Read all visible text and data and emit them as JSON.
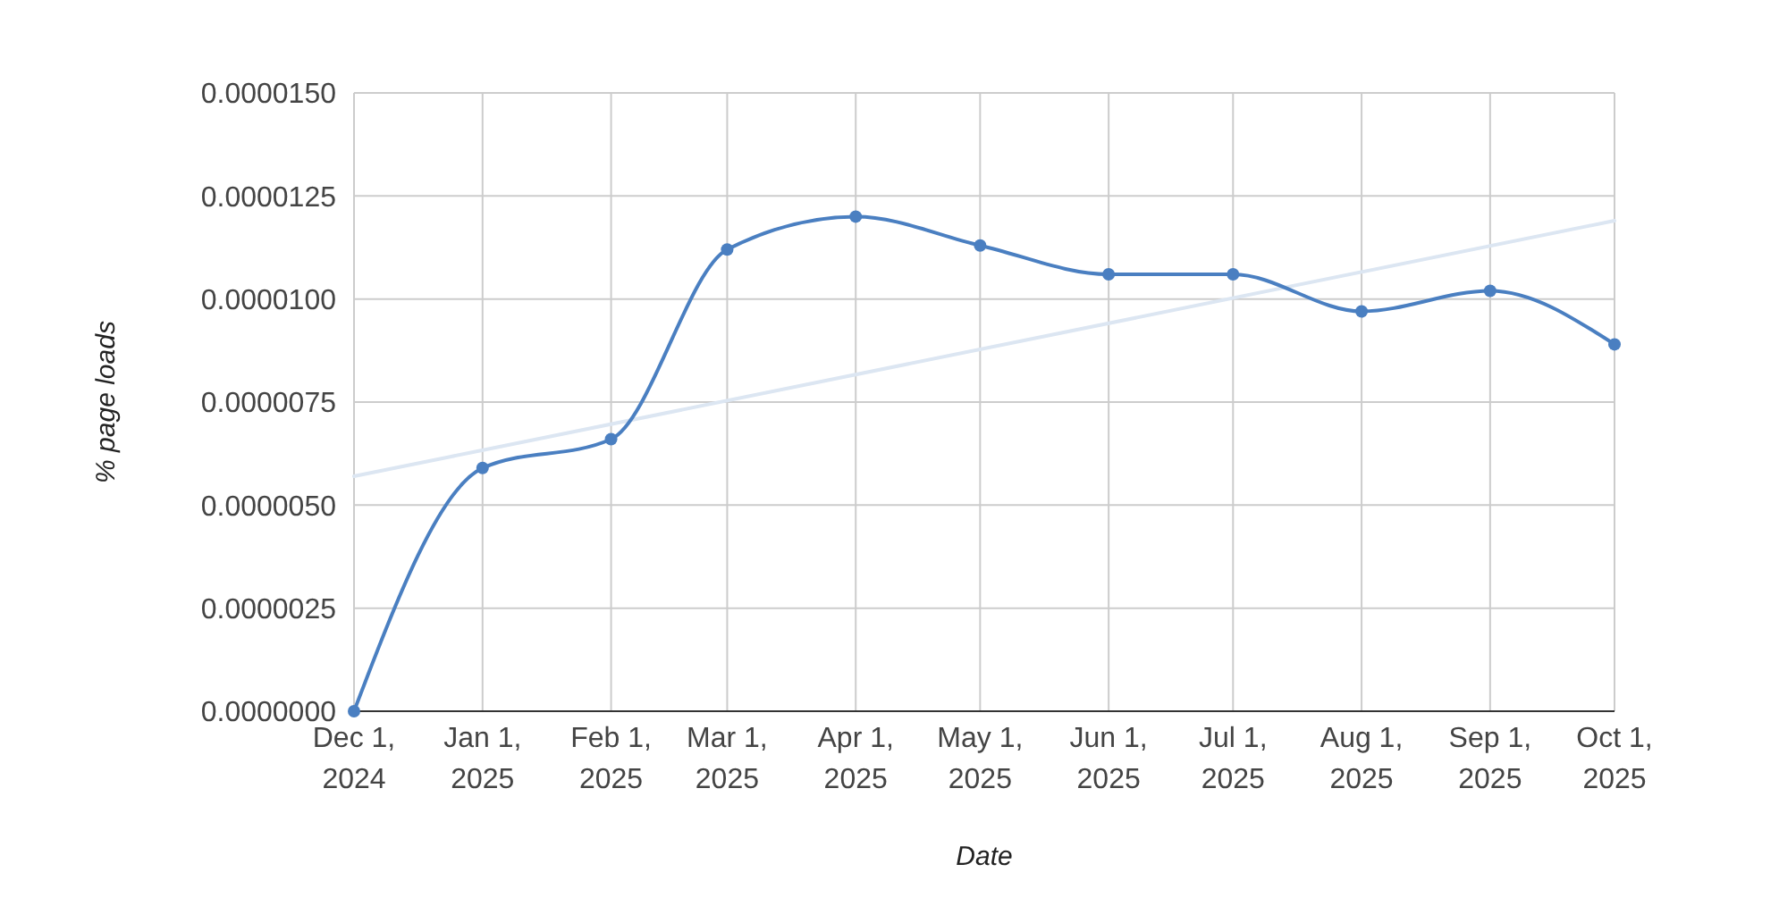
{
  "chart_data": {
    "type": "line",
    "xlabel": "Date",
    "ylabel": "% page loads",
    "x": [
      "2024-12-01",
      "2025-01-01",
      "2025-02-01",
      "2025-03-01",
      "2025-04-01",
      "2025-05-01",
      "2025-06-01",
      "2025-07-01",
      "2025-08-01",
      "2025-09-01",
      "2025-10-01"
    ],
    "series": [
      {
        "color": "#4a7fc1",
        "values": [
          0,
          5.9e-06,
          6.6e-06,
          1.12e-05,
          1.2e-05,
          1.13e-05,
          1.06e-05,
          1.06e-05,
          9.7e-06,
          1.02e-05,
          8.9e-06
        ]
      },
      {
        "type": "line",
        "color": "#dce6f2",
        "marker": "none",
        "x": [
          "2024-12-01",
          "2025-10-01"
        ],
        "values": [
          5.7e-06,
          1.19e-05
        ]
      }
    ],
    "xlim": [
      "2024-12-01",
      "2025-10-01"
    ],
    "xticks": [
      {
        "value": "2024-12-01",
        "label": "Dec 1, 2024"
      },
      {
        "value": "2025-01-01",
        "label": "Jan 1, 2025"
      },
      {
        "value": "2025-02-01",
        "label": "Feb 1, 2025"
      },
      {
        "value": "2025-03-01",
        "label": "Mar 1, 2025"
      },
      {
        "value": "2025-04-01",
        "label": "Apr 1, 2025"
      },
      {
        "value": "2025-05-01",
        "label": "May 1, 2025"
      },
      {
        "value": "2025-06-01",
        "label": "Jun 1, 2025"
      },
      {
        "value": "2025-07-01",
        "label": "Jul 1, 2025"
      },
      {
        "value": "2025-08-01",
        "label": "Aug 1, 2025"
      },
      {
        "value": "2025-09-01",
        "label": "Sep 1, 2025"
      },
      {
        "value": "2025-10-01",
        "label": "Oct 1, 2025"
      }
    ],
    "ylim": [
      0,
      1.5e-05
    ],
    "yticks": [
      {
        "value": 0,
        "label": "0.0000000"
      },
      {
        "value": 2.5e-06,
        "label": "0.0000025"
      },
      {
        "value": 5e-06,
        "label": "0.0000050"
      },
      {
        "value": 7.5e-06,
        "label": "0.0000075"
      },
      {
        "value": 1e-05,
        "label": "0.0000100"
      },
      {
        "value": 1.25e-05,
        "label": "0.0000125"
      },
      {
        "value": 1.5e-05,
        "label": "0.0000150"
      }
    ],
    "grid": true,
    "marker": "circle"
  }
}
